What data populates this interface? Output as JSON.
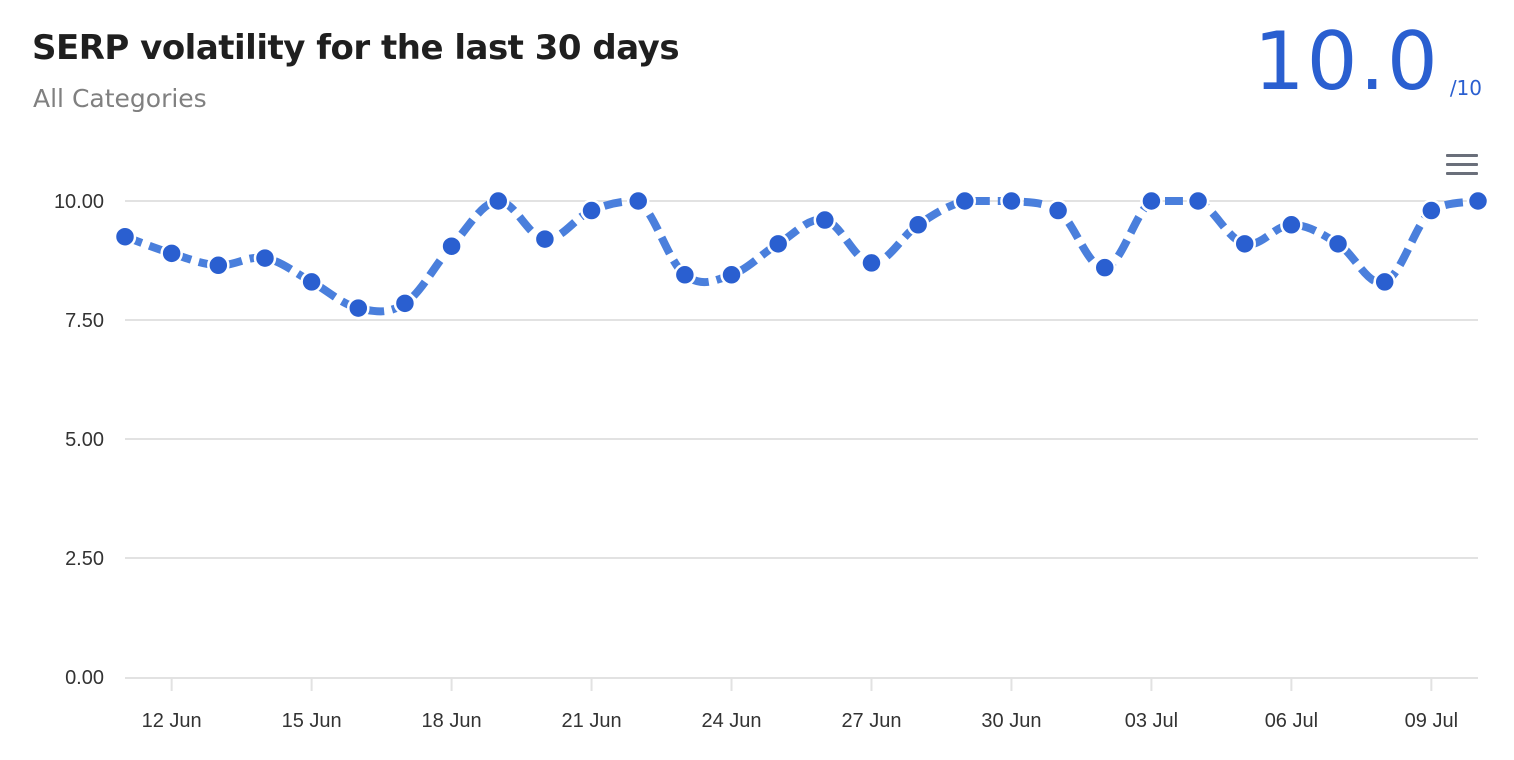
{
  "header": {
    "title": "SERP volatility for the last 30 days",
    "subtitle": "All Categories",
    "score": "10.0",
    "score_max": "/10"
  },
  "menu": {
    "icon": "hamburger-menu-icon"
  },
  "colors": {
    "accent": "#2a5fd0",
    "line": "#4a7fdc",
    "grid": "#e2e2e2"
  },
  "chart_data": {
    "type": "line",
    "title": "SERP volatility for the last 30 days",
    "subtitle": "All Categories",
    "xlabel": "",
    "ylabel": "",
    "ylim": [
      0,
      10
    ],
    "yticks": [
      "0.00",
      "2.50",
      "5.00",
      "7.50",
      "10.00"
    ],
    "xticks": [
      "12 Jun",
      "15 Jun",
      "18 Jun",
      "21 Jun",
      "24 Jun",
      "27 Jun",
      "30 Jun",
      "03 Jul",
      "06 Jul",
      "09 Jul"
    ],
    "grid": true,
    "series": [
      {
        "x": [
          "11 Jun",
          "12 Jun",
          "13 Jun",
          "14 Jun",
          "15 Jun",
          "16 Jun",
          "17 Jun",
          "18 Jun",
          "19 Jun",
          "20 Jun",
          "21 Jun",
          "22 Jun",
          "23 Jun",
          "24 Jun",
          "25 Jun",
          "26 Jun",
          "27 Jun",
          "28 Jun",
          "29 Jun",
          "30 Jun",
          "01 Jul",
          "02 Jul",
          "03 Jul",
          "04 Jul",
          "05 Jul",
          "06 Jul",
          "07 Jul",
          "08 Jul",
          "09 Jul",
          "10 Jul"
        ],
        "values": [
          9.25,
          8.9,
          8.65,
          8.8,
          8.3,
          7.75,
          7.85,
          9.05,
          10.0,
          9.2,
          9.8,
          10.0,
          8.45,
          8.45,
          9.1,
          9.6,
          8.7,
          9.5,
          10.0,
          10.0,
          9.8,
          8.6,
          10.0,
          10.0,
          9.1,
          9.5,
          9.1,
          8.3,
          9.8,
          10.0
        ]
      }
    ]
  }
}
